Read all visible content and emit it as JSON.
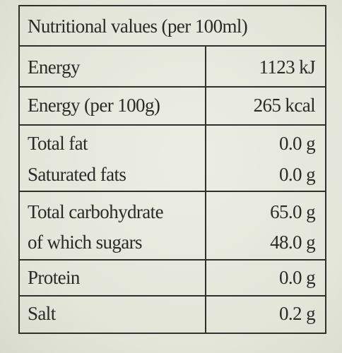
{
  "table": {
    "header": "Nutritional values (per 100ml)",
    "rows": [
      {
        "label": "Energy",
        "value": "1123 kJ"
      },
      {
        "label": "Energy (per 100g)",
        "value": "265 kcal"
      },
      {
        "label": "Total fat",
        "value": "0.0 g"
      },
      {
        "label": "Saturated fats",
        "value": "0.0 g"
      },
      {
        "label": "Total carbohydrate",
        "value": "65.0 g"
      },
      {
        "label": "of which sugars",
        "value": "48.0 g"
      },
      {
        "label": "Protein",
        "value": "0.0 g"
      },
      {
        "label": "Salt",
        "value": "0.2 g"
      }
    ]
  }
}
